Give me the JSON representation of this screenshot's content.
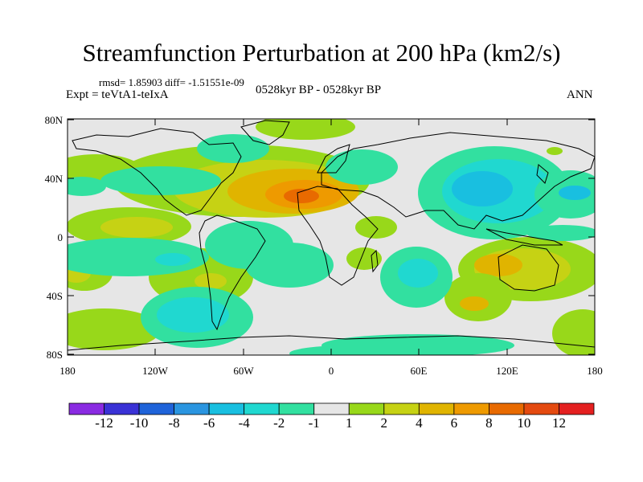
{
  "title": "Streamfunction Perturbation at 200 hPa (km2/s)",
  "stats": "rmsd= 1.85903 diff= -1.51551e-09",
  "experiment": "Expt = teVtA1-teIxA",
  "period": "0528kyr BP - 0528kyr BP",
  "season": "ANN",
  "map": {
    "lat_labels": [
      "80N",
      "40N",
      "0",
      "40S",
      "80S"
    ],
    "lon_labels": [
      "180",
      "120W",
      "60W",
      "0",
      "60E",
      "120E",
      "180"
    ]
  },
  "colorbar": {
    "labels": [
      "-12",
      "-10",
      "-8",
      "-6",
      "-4",
      "-2",
      "-1",
      "1",
      "2",
      "4",
      "6",
      "8",
      "10",
      "12"
    ],
    "colors": [
      "#8a2be2",
      "#3a32d6",
      "#1f63d9",
      "#2a95e0",
      "#19bfe0",
      "#20d8d0",
      "#32e0a0",
      "#e6e6e6",
      "#98d81a",
      "#c6d214",
      "#e0b400",
      "#ee9a00",
      "#e86a00",
      "#e44a10",
      "#e42020"
    ]
  }
}
